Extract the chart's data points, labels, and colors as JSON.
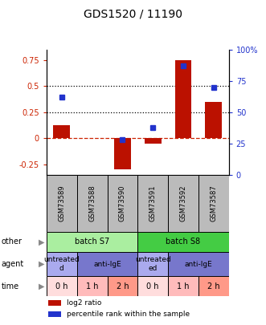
{
  "title": "GDS1520 / 11190",
  "samples": [
    "GSM73589",
    "GSM73588",
    "GSM73590",
    "GSM73591",
    "GSM73592",
    "GSM73587"
  ],
  "log2_ratio": [
    0.13,
    0.0,
    -0.3,
    -0.05,
    0.75,
    0.35
  ],
  "percentile_rank": [
    62,
    null,
    28,
    38,
    87,
    70
  ],
  "ylim_left": [
    -0.35,
    0.85
  ],
  "ylim_right": [
    0,
    100
  ],
  "left_ticks": [
    -0.25,
    0,
    0.25,
    0.5,
    0.75
  ],
  "right_ticks": [
    0,
    25,
    50,
    75,
    100
  ],
  "hline_values": [
    0.5,
    0.25
  ],
  "bar_color": "#bb1100",
  "dot_color": "#2233cc",
  "zero_line_color": "#cc2200",
  "batch_row": [
    {
      "label": "batch S7",
      "start": 0,
      "end": 3,
      "color": "#aaeea0"
    },
    {
      "label": "batch S8",
      "start": 3,
      "end": 6,
      "color": "#44cc44"
    }
  ],
  "agent_row": [
    {
      "label": "untreated\nd",
      "start": 0,
      "end": 1,
      "color": "#aaaaee"
    },
    {
      "label": "anti-IgE",
      "start": 1,
      "end": 3,
      "color": "#7777cc"
    },
    {
      "label": "untreated\ned",
      "start": 3,
      "end": 4,
      "color": "#aaaaee"
    },
    {
      "label": "anti-IgE",
      "start": 4,
      "end": 6,
      "color": "#7777cc"
    }
  ],
  "time_row": [
    {
      "label": "0 h",
      "start": 0,
      "end": 1,
      "color": "#ffdddd"
    },
    {
      "label": "1 h",
      "start": 1,
      "end": 2,
      "color": "#ffbbbb"
    },
    {
      "label": "2 h",
      "start": 2,
      "end": 3,
      "color": "#ff9988"
    },
    {
      "label": "0 h",
      "start": 3,
      "end": 4,
      "color": "#ffdddd"
    },
    {
      "label": "1 h",
      "start": 4,
      "end": 5,
      "color": "#ffbbbb"
    },
    {
      "label": "2 h",
      "start": 5,
      "end": 6,
      "color": "#ff9988"
    }
  ],
  "legend_items": [
    {
      "color": "#bb1100",
      "label": "log2 ratio"
    },
    {
      "color": "#2233cc",
      "label": "percentile rank within the sample"
    }
  ],
  "left_label_color": "#cc2200",
  "right_label_color": "#2233cc"
}
